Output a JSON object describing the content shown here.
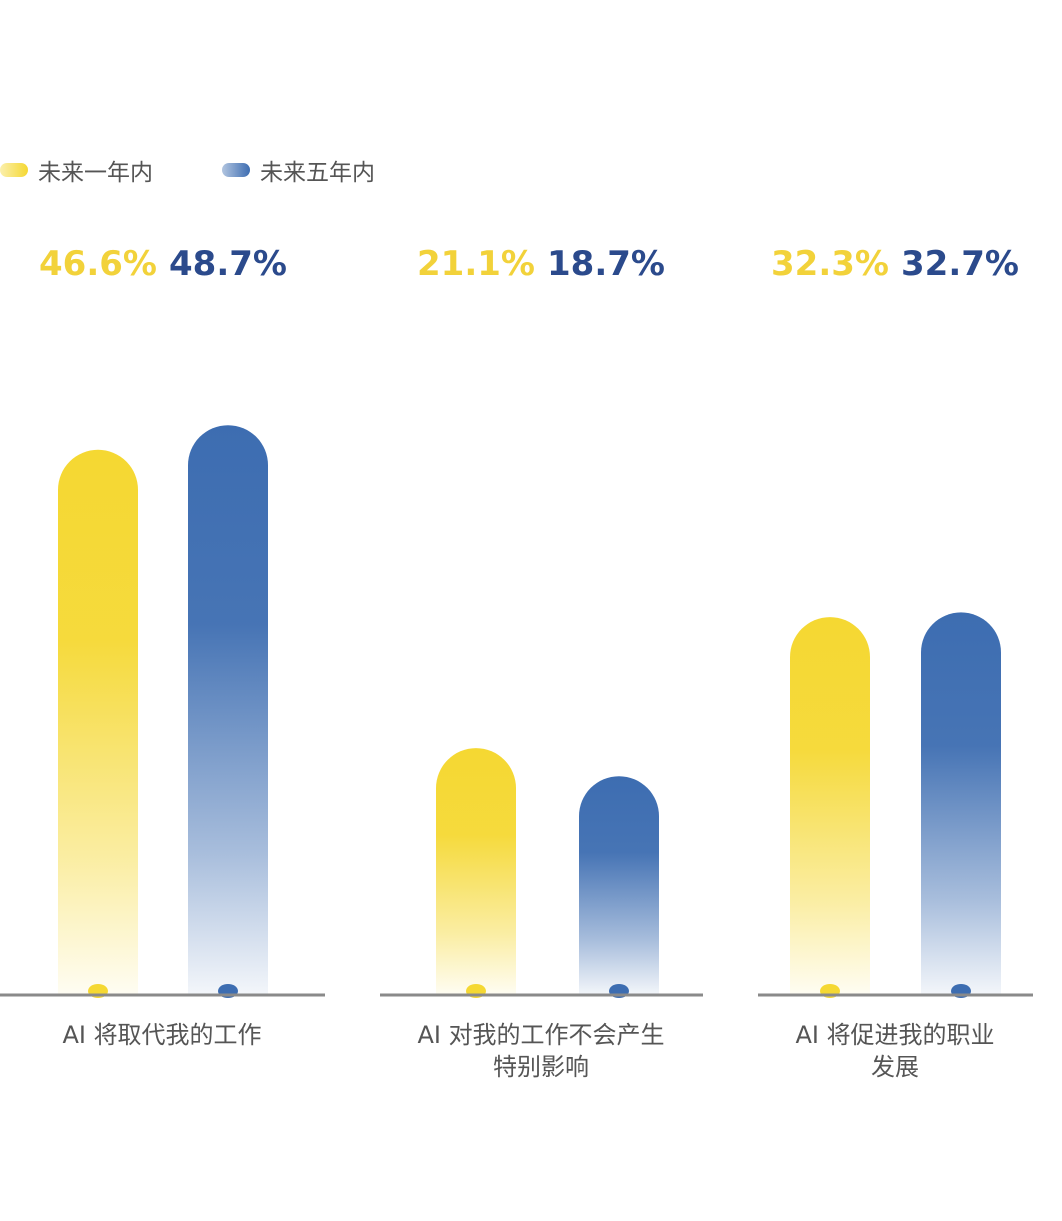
{
  "legend": [
    {
      "label": "未来一年内",
      "color": "#f5d832"
    },
    {
      "label": "未来五年内",
      "color": "#3d6db1"
    }
  ],
  "chart_data": {
    "type": "bar",
    "categories": [
      [
        "AI 将取代我的工作"
      ],
      [
        "AI 对我的工作不会产生",
        "特别影响"
      ],
      [
        "AI 将促进我的职业",
        "发展"
      ]
    ],
    "series": [
      {
        "name": "未来一年内",
        "values": [
          46.6,
          21.1,
          32.3
        ],
        "labels": [
          "46.6%",
          "21.1%",
          "32.3%"
        ],
        "color": "#f5d832",
        "label_color": "#f2d23a"
      },
      {
        "name": "未来五年内",
        "values": [
          48.7,
          18.7,
          32.7
        ],
        "labels": [
          "48.7%",
          "18.7%",
          "32.7%"
        ],
        "color": "#3d6db1",
        "label_color": "#2b4a8c"
      }
    ],
    "ylim": [
      0,
      50
    ],
    "grid": false,
    "legend_position": "top-left",
    "xlabel": "",
    "ylabel": ""
  }
}
